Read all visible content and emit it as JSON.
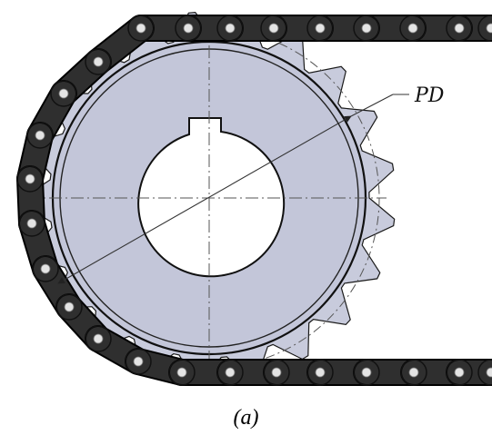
{
  "labels": {
    "pitch_diameter": "PD"
  },
  "caption": {
    "open": "(",
    "letter": "a",
    "close": ")"
  },
  "colors": {
    "sprocket_face": "#c3c6d9",
    "tooth": "#c8cbdc",
    "chain_link": "#2f2f2f",
    "chain_outline": "#000000",
    "pin": "#e4e4e4",
    "bore": "#ffffff",
    "center_line": "#555555",
    "dimension_line": "#333333"
  },
  "icons": {
    "dimension_arrow": "arrowhead"
  }
}
